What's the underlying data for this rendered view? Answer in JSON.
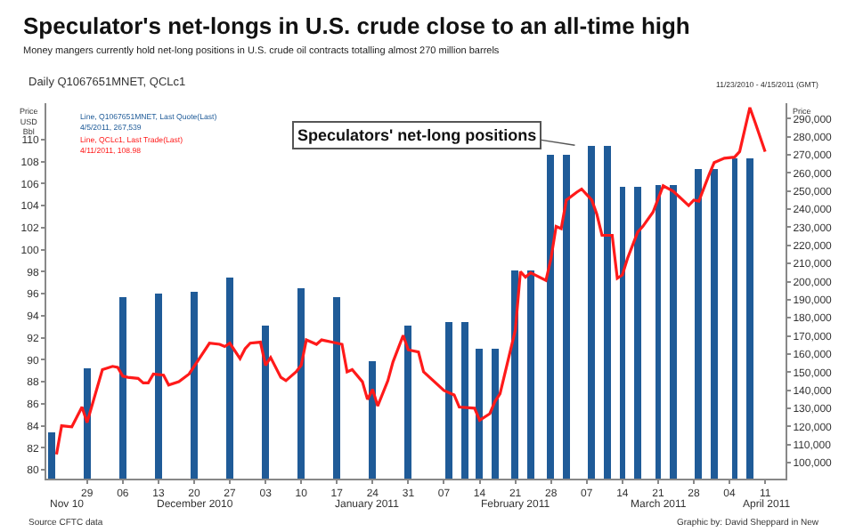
{
  "chart_data": {
    "type": "bar",
    "title": "Speculator's net-longs in U.S. crude close to an all-time high",
    "subtitle": "Money mangers currently hold net-long positions in U.S. crude oil contracts totalling almost 270 million barrels",
    "ylabel": "Price\nUSD\nBbl",
    "y2label": "Price",
    "annotations": [
      "Speculators' net-long positions",
      "Daily Q1067651MNET, QCLc1",
      "Line, Q1067651MNET, Last Quote(Last)",
      "4/5/2011, 267,539",
      "Line, QCLc1, Last Trade(Last)",
      "4/11/2011, 108.98",
      "11/23/2010 - 4/15/2011 (GMT)",
      "Source CFTC data",
      "Graphic by: David Sheppard in New",
      "Nov 10",
      "December 2010",
      "January 2011",
      "February 2011",
      "March 2011",
      "April 2011"
    ],
    "series": [
      {
        "axis": "y2",
        "color": "#1f5b98",
        "x": [
          "2010-11-22",
          "2010-11-29",
          "2010-12-06",
          "2010-12-13",
          "2010-12-20",
          "2010-12-27",
          "2011-01-03",
          "2011-01-10",
          "2011-01-17",
          "2011-01-24",
          "2011-01-31",
          "2011-02-08",
          "2011-02-11",
          "2011-02-14",
          "2011-02-17",
          "2011-02-21",
          "2011-02-24",
          "2011-02-28",
          "2011-03-03",
          "2011-03-08",
          "2011-03-11",
          "2011-03-14",
          "2011-03-17",
          "2011-03-21",
          "2011-03-24",
          "2011-03-29",
          "2011-04-01",
          "2011-04-05",
          "2011-04-08"
        ],
        "values": [
          117000,
          152000,
          191000,
          193000,
          194000,
          202000,
          176000,
          196000,
          191000,
          156000,
          176000,
          178000,
          178000,
          163000,
          163000,
          206000,
          206000,
          270000,
          270000,
          275000,
          275000,
          252000,
          252000,
          253000,
          253000,
          262000,
          262000,
          268000,
          268000
        ]
      },
      {
        "type": "line",
        "color": "#ff1a1a",
        "x": [
          "2010-11-23",
          "2010-11-24",
          "2010-11-26",
          "2010-11-28",
          "2010-11-29",
          "2010-12-02",
          "2010-12-04",
          "2010-12-05",
          "2010-12-06",
          "2010-12-07",
          "2010-12-09",
          "2010-12-10",
          "2010-12-11",
          "2010-12-12",
          "2010-12-14",
          "2010-12-15",
          "2010-12-17",
          "2010-12-19",
          "2010-12-21",
          "2010-12-23",
          "2010-12-25",
          "2010-12-26",
          "2010-12-27",
          "2010-12-29",
          "2010-12-30",
          "2010-12-31",
          "2011-01-02",
          "2011-01-03",
          "2011-01-04",
          "2011-01-06",
          "2011-01-07",
          "2011-01-09",
          "2011-01-10",
          "2011-01-11",
          "2011-01-13",
          "2011-01-14",
          "2011-01-16",
          "2011-01-18",
          "2011-01-19",
          "2011-01-20",
          "2011-01-22",
          "2011-01-23",
          "2011-01-24",
          "2011-01-25",
          "2011-01-27",
          "2011-01-28",
          "2011-01-30",
          "2011-01-31",
          "2011-02-02",
          "2011-02-03",
          "2011-02-07",
          "2011-02-09",
          "2011-02-10",
          "2011-02-13",
          "2011-02-14",
          "2011-02-16",
          "2011-02-17",
          "2011-02-18",
          "2011-02-21",
          "2011-02-22",
          "2011-02-23",
          "2011-02-24",
          "2011-02-27",
          "2011-02-28",
          "2011-03-01",
          "2011-03-02",
          "2011-03-03",
          "2011-03-05",
          "2011-03-06",
          "2011-03-08",
          "2011-03-09",
          "2011-03-10",
          "2011-03-12",
          "2011-03-13",
          "2011-03-14",
          "2011-03-15",
          "2011-03-17",
          "2011-03-18",
          "2011-03-20",
          "2011-03-22",
          "2011-03-24",
          "2011-03-27",
          "2011-03-28",
          "2011-03-29",
          "2011-03-31",
          "2011-04-01",
          "2011-04-03",
          "2011-04-05",
          "2011-04-06",
          "2011-04-08",
          "2011-04-09",
          "2011-04-11"
        ],
        "values": [
          81.4,
          84.0,
          83.9,
          85.7,
          84.3,
          89.1,
          89.4,
          89.3,
          88.5,
          88.4,
          88.3,
          87.9,
          87.9,
          88.7,
          88.6,
          87.7,
          88.0,
          88.7,
          90.1,
          91.5,
          91.4,
          91.2,
          91.5,
          90.1,
          91.0,
          91.5,
          91.6,
          89.5,
          90.2,
          88.4,
          88.1,
          88.9,
          89.5,
          91.8,
          91.4,
          91.8,
          91.6,
          91.4,
          88.9,
          89.1,
          88.0,
          86.4,
          87.3,
          85.8,
          88.1,
          89.8,
          92.2,
          90.9,
          90.7,
          88.9,
          87.2,
          86.8,
          85.7,
          85.6,
          84.5,
          85.1,
          86.2,
          86.9,
          92.7,
          98.0,
          97.5,
          97.9,
          97.2,
          99.2,
          102.1,
          101.9,
          104.5,
          105.2,
          105.5,
          104.5,
          103.2,
          101.3,
          101.3,
          97.4,
          97.7,
          99.2,
          101.6,
          102.1,
          103.4,
          105.8,
          105.3,
          104.0,
          104.5,
          104.4,
          106.8,
          107.9,
          108.3,
          108.4,
          108.9,
          112.9,
          111.6,
          108.9
        ]
      }
    ],
    "xlim": [
      "2010-11-21",
      "2011-04-15"
    ],
    "xticks": [
      {
        "value": "2010-11-29",
        "label": "29"
      },
      {
        "value": "2010-12-06",
        "label": "06"
      },
      {
        "value": "2010-12-13",
        "label": "13"
      },
      {
        "value": "2010-12-20",
        "label": "20"
      },
      {
        "value": "2010-12-27",
        "label": "27"
      },
      {
        "value": "2011-01-03",
        "label": "03"
      },
      {
        "value": "2011-01-10",
        "label": "10"
      },
      {
        "value": "2011-01-17",
        "label": "17"
      },
      {
        "value": "2011-01-24",
        "label": "24"
      },
      {
        "value": "2011-01-31",
        "label": "31"
      },
      {
        "value": "2011-02-07",
        "label": "07"
      },
      {
        "value": "2011-02-14",
        "label": "14"
      },
      {
        "value": "2011-02-21",
        "label": "21"
      },
      {
        "value": "2011-02-28",
        "label": "28"
      },
      {
        "value": "2011-03-07",
        "label": "07"
      },
      {
        "value": "2011-03-14",
        "label": "14"
      },
      {
        "value": "2011-03-21",
        "label": "21"
      },
      {
        "value": "2011-03-28",
        "label": "28"
      },
      {
        "value": "2011-04-04",
        "label": "04"
      },
      {
        "value": "2011-04-11",
        "label": "11"
      }
    ],
    "ylim": [
      79.2,
      113.3
    ],
    "yticks": [
      80,
      82,
      84,
      86,
      88,
      90,
      92,
      94,
      96,
      98,
      100,
      102,
      104,
      106,
      108,
      110
    ],
    "y2lim": [
      91200,
      298500
    ],
    "y2ticks": [
      {
        "value": 100000,
        "label": "100,000"
      },
      {
        "value": 110000,
        "label": "110,000"
      },
      {
        "value": 120000,
        "label": "120,000"
      },
      {
        "value": 130000,
        "label": "130,000"
      },
      {
        "value": 140000,
        "label": "140,000"
      },
      {
        "value": 150000,
        "label": "150,000"
      },
      {
        "value": 160000,
        "label": "160,000"
      },
      {
        "value": 170000,
        "label": "170,000"
      },
      {
        "value": 180000,
        "label": "180,000"
      },
      {
        "value": 190000,
        "label": "190,000"
      },
      {
        "value": 200000,
        "label": "200,000"
      },
      {
        "value": 210000,
        "label": "210,000"
      },
      {
        "value": 220000,
        "label": "220,000"
      },
      {
        "value": 230000,
        "label": "230,000"
      },
      {
        "value": 240000,
        "label": "240,000"
      },
      {
        "value": 250000,
        "label": "250,000"
      },
      {
        "value": 260000,
        "label": "260,000"
      },
      {
        "value": 270000,
        "label": "270,000"
      },
      {
        "value": 280000,
        "label": "280,000"
      },
      {
        "value": 290000,
        "label": "290,000"
      }
    ]
  }
}
